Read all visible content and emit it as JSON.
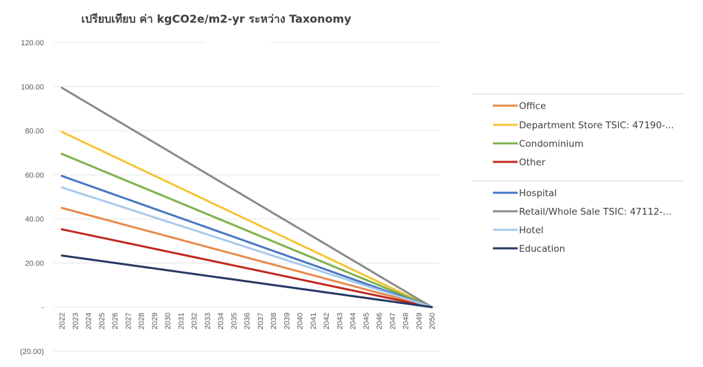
{
  "chart_data": {
    "type": "line",
    "title": "เปรียบเทียบ ค่า kgCO2e/m2-yr ระหว่าง  Taxonomy",
    "xlabel": "",
    "ylabel": "",
    "ylim": [
      -20,
      120
    ],
    "y_ticks": [
      {
        "value": 120,
        "label": "120.00"
      },
      {
        "value": 100,
        "label": "100.00"
      },
      {
        "value": 80,
        "label": "80.00"
      },
      {
        "value": 60,
        "label": "60.00"
      },
      {
        "value": 40,
        "label": "40.00"
      },
      {
        "value": 20,
        "label": "20.00"
      },
      {
        "value": 0,
        "label": "-"
      },
      {
        "value": -20,
        "label": "(20.00)"
      }
    ],
    "grid": true,
    "legend_position": "right",
    "x": [
      2022,
      2023,
      2024,
      2025,
      2026,
      2027,
      2028,
      2029,
      2030,
      2031,
      2032,
      2033,
      2034,
      2035,
      2036,
      2037,
      2038,
      2039,
      2040,
      2041,
      2042,
      2043,
      2044,
      2045,
      2046,
      2047,
      2048,
      2049,
      2050
    ],
    "series": [
      {
        "name": "Office",
        "color": "#E8894A",
        "start": 45,
        "end": 0
      },
      {
        "name": "Department Store TSIC: 47190-...",
        "color": "#F5C431",
        "start": 79.5,
        "end": 0
      },
      {
        "name": "Condominium",
        "color": "#7DB14A",
        "start": 69.5,
        "end": 0
      },
      {
        "name": "Other",
        "color": "#C0281E",
        "start": 35.3,
        "end": 0
      },
      {
        "name": "Hospital",
        "color": "#4677C3",
        "start": 59.5,
        "end": 0
      },
      {
        "name": "Retail/Whole Sale TSIC: 47112-...",
        "color": "#8A8A8A",
        "start": 99.5,
        "end": 0
      },
      {
        "name": "Hotel",
        "color": "#A8C9EC",
        "start": 54.3,
        "end": 0
      },
      {
        "name": "Education",
        "color": "#233762",
        "start": 23.4,
        "end": 0
      }
    ]
  }
}
